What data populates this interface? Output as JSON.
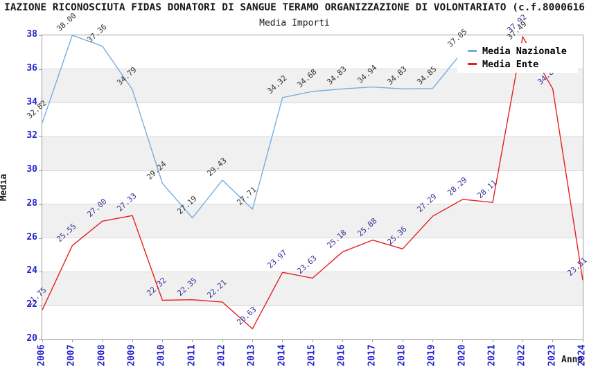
{
  "header": {
    "title": "IAZIONE RICONOSCIUTA FIDAS DONATORI DI SANGUE TERAMO ORGANIZZAZIONE DI VOLONTARIATO (c.f.8000616",
    "subtitle": "Media Importi"
  },
  "chart_data": {
    "type": "line",
    "x": [
      2006,
      2007,
      2008,
      2009,
      2010,
      2011,
      2012,
      2013,
      2014,
      2015,
      2016,
      2017,
      2018,
      2019,
      2020,
      2021,
      2022,
      2023,
      2024
    ],
    "series": [
      {
        "name": "Media Nazionale",
        "color": "#76ace0",
        "label_color": "#333333",
        "values": [
          32.82,
          38.0,
          37.36,
          34.79,
          29.24,
          27.19,
          29.43,
          27.71,
          34.32,
          34.68,
          34.83,
          34.94,
          34.83,
          34.85,
          37.05,
          null,
          37.49,
          null,
          null
        ]
      },
      {
        "name": "Media Ente",
        "color": "#e41f1f",
        "label_color": "#333399",
        "values": [
          21.75,
          25.55,
          27.0,
          27.33,
          22.32,
          22.35,
          22.21,
          20.63,
          23.97,
          23.63,
          25.18,
          25.88,
          25.36,
          27.29,
          28.29,
          28.11,
          37.92,
          34.83,
          23.51
        ]
      }
    ],
    "xlabel": "Anno",
    "ylabel": "Media",
    "ylim": [
      20,
      38
    ],
    "yticks": [
      20,
      22,
      24,
      26,
      28,
      30,
      32,
      34,
      36,
      38
    ],
    "grid": "horizontal-bands-alternating",
    "band_color": "#f0f0f0",
    "gridline_color": "#d8d8d8",
    "tick_label_color": "#2424cc",
    "legend_position": "top-right-inside"
  },
  "legend": {
    "items": [
      {
        "label": "Media Nazionale",
        "color": "#76ace0"
      },
      {
        "label": "Media Ente",
        "color": "#e41f1f"
      }
    ]
  }
}
